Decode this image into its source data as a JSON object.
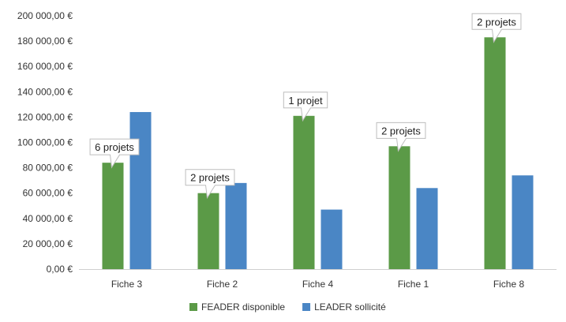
{
  "chart_data": {
    "type": "bar",
    "categories": [
      "Fiche 3",
      "Fiche 2",
      "Fiche 4",
      "Fiche 1",
      "Fiche 8"
    ],
    "series": [
      {
        "name": "FEADER disponible",
        "values": [
          84000,
          60000,
          121000,
          97000,
          183000
        ],
        "color": "#5b9a47"
      },
      {
        "name": "LEADER sollicité",
        "values": [
          124000,
          68000,
          47000,
          64000,
          74000
        ],
        "color": "#4a86c5"
      }
    ],
    "annotations": [
      "6 projets",
      "2 projets",
      "1 projet",
      "2 projets",
      "2 projets"
    ],
    "yticks": [
      "0,00 €",
      "20 000,00 €",
      "40 000,00 €",
      "60 000,00 €",
      "80 000,00 €",
      "100 000,00 €",
      "120 000,00 €",
      "140 000,00 €",
      "160 000,00 €",
      "180 000,00 €",
      "200 000,00 €"
    ],
    "ylim": [
      0,
      200000
    ],
    "legend_position": "bottom",
    "grid": false
  }
}
